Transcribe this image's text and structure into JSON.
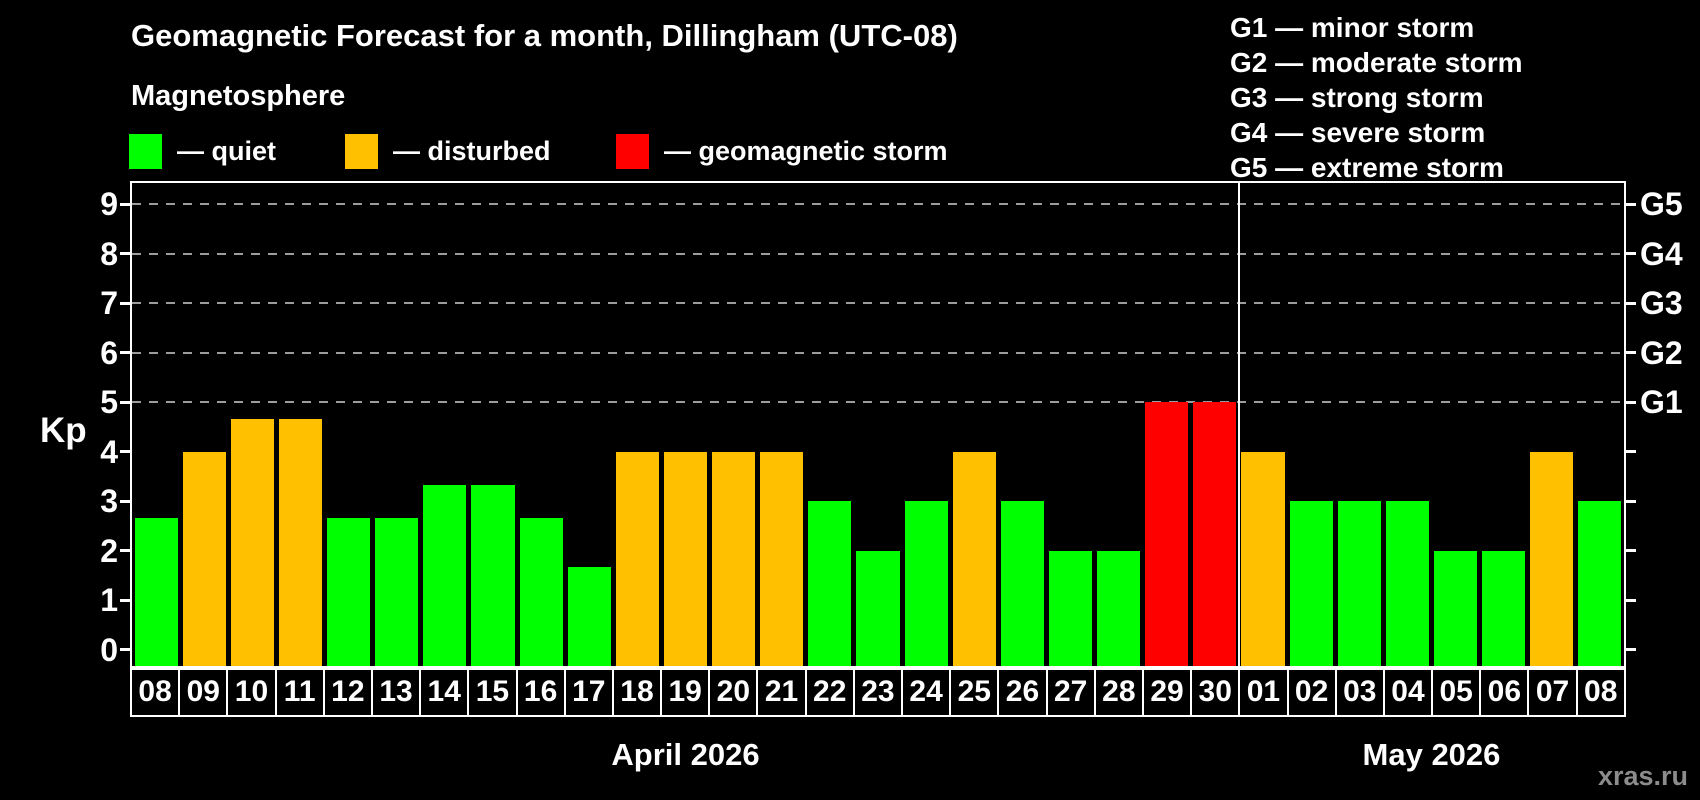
{
  "header": {
    "title": "Geomagnetic Forecast for a month, Dillingham (UTC-08)",
    "subtitle": "Magnetosphere",
    "legend": [
      {
        "key": "quiet",
        "label": "— quiet"
      },
      {
        "key": "disturbed",
        "label": "— disturbed"
      },
      {
        "key": "storm",
        "label": "— geomagnetic storm"
      }
    ],
    "g_scale": [
      "G1 — minor storm",
      "G2 — moderate storm",
      "G3 — strong storm",
      "G4 — severe storm",
      "G5 — extreme storm"
    ]
  },
  "chart_data": {
    "type": "bar",
    "title": "Geomagnetic Forecast for a month, Dillingham (UTC-08)",
    "ylabel": "Kp",
    "ylim": [
      0,
      9
    ],
    "yticks": [
      0,
      1,
      2,
      3,
      4,
      5,
      6,
      7,
      8,
      9
    ],
    "gridlines": [
      5,
      6,
      7,
      8,
      9
    ],
    "grid_style": "dashed",
    "right_axis": [
      {
        "kp": 5,
        "label": "G1"
      },
      {
        "kp": 6,
        "label": "G2"
      },
      {
        "kp": 7,
        "label": "G3"
      },
      {
        "kp": 8,
        "label": "G4"
      },
      {
        "kp": 9,
        "label": "G5"
      }
    ],
    "groups": [
      {
        "label": "April 2026",
        "count": 23
      },
      {
        "label": "May 2026",
        "count": 8
      }
    ],
    "categories": [
      "08",
      "09",
      "10",
      "11",
      "12",
      "13",
      "14",
      "15",
      "16",
      "17",
      "18",
      "19",
      "20",
      "21",
      "22",
      "23",
      "24",
      "25",
      "26",
      "27",
      "28",
      "29",
      "30",
      "01",
      "02",
      "03",
      "04",
      "05",
      "06",
      "07",
      "08"
    ],
    "values": [
      2.67,
      4,
      4.67,
      4.67,
      2.67,
      2.67,
      3.33,
      3.33,
      2.67,
      1.67,
      4,
      4,
      4,
      4,
      3,
      2,
      3,
      4,
      3,
      2,
      2,
      5,
      5,
      4,
      3,
      3,
      3,
      2,
      2,
      4,
      3
    ],
    "statuses": [
      "quiet",
      "disturbed",
      "disturbed",
      "disturbed",
      "quiet",
      "quiet",
      "quiet",
      "quiet",
      "quiet",
      "quiet",
      "disturbed",
      "disturbed",
      "disturbed",
      "disturbed",
      "quiet",
      "quiet",
      "quiet",
      "disturbed",
      "quiet",
      "quiet",
      "quiet",
      "storm",
      "storm",
      "disturbed",
      "quiet",
      "quiet",
      "quiet",
      "quiet",
      "quiet",
      "disturbed",
      "quiet"
    ],
    "colors": {
      "quiet": "#00ff00",
      "disturbed": "#ffc000",
      "storm": "#ff0000"
    },
    "axis_color": "#ffffff",
    "background": "#000000"
  },
  "watermark": "xras.ru"
}
